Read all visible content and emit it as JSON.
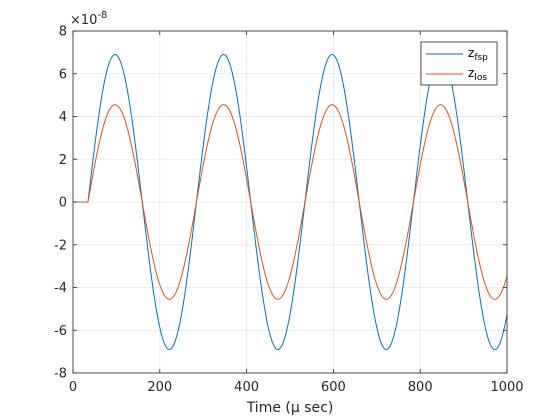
{
  "chart_data": {
    "type": "line",
    "x_scale_exponent": "×10",
    "y_exponent_base": "×10",
    "y_exponent_power": "-8",
    "xlabel": "Time (μ sec)",
    "xlim": [
      0,
      1000
    ],
    "ylim": [
      -8,
      8
    ],
    "xticks": [
      "0",
      "200",
      "400",
      "600",
      "800",
      "1000"
    ],
    "yticks": [
      "-8",
      "-6",
      "-4",
      "-2",
      "0",
      "2",
      "4",
      "6",
      "8"
    ],
    "grid": true,
    "legend_position": "top-right",
    "series": [
      {
        "name_main": "z",
        "name_sub": "fsp",
        "color": "#0072bd",
        "amplitude": 6.9,
        "start_time": 35,
        "peak_time": 97,
        "period": 250
      },
      {
        "name_main": "z",
        "name_sub": "los",
        "color": "#d95319",
        "amplitude": 4.55,
        "start_time": 35,
        "peak_time": 97,
        "period": 250
      }
    ]
  }
}
